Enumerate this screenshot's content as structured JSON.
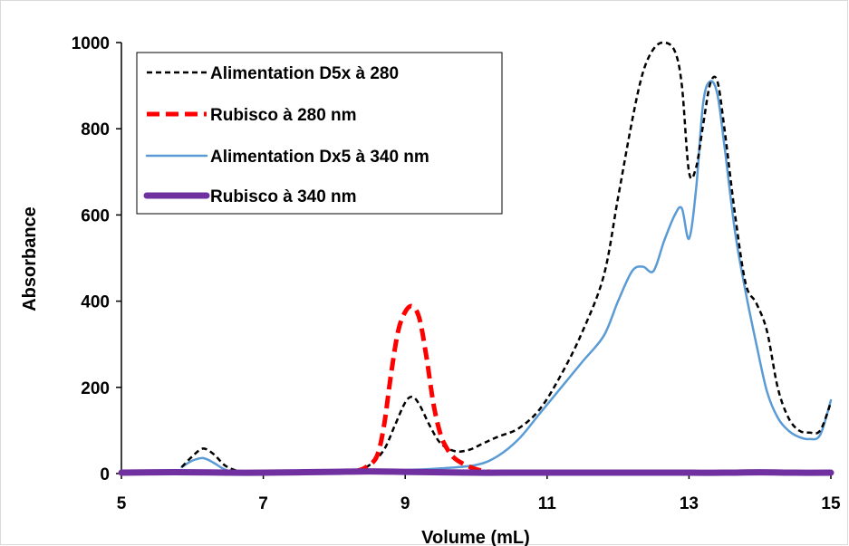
{
  "chart_data": {
    "type": "line",
    "title": "",
    "xlabel": "Volume (mL)",
    "ylabel": "Absorbance",
    "xlim": [
      5,
      15
    ],
    "ylim": [
      0,
      1000
    ],
    "xticks": [
      5,
      7,
      9,
      11,
      13,
      15
    ],
    "yticks": [
      0,
      200,
      400,
      600,
      800,
      1000
    ],
    "grid": false,
    "legend_position": "top-left",
    "series": [
      {
        "name": "Alimentation D5x à 280",
        "color": "#000000",
        "style": "dotted",
        "x": [
          5.85,
          6.0,
          6.15,
          6.3,
          6.45,
          6.6,
          6.8,
          7.0,
          7.5,
          8.0,
          8.3,
          8.5,
          8.7,
          8.85,
          9.0,
          9.1,
          9.2,
          9.35,
          9.5,
          9.7,
          9.9,
          10.1,
          10.3,
          10.6,
          10.9,
          11.2,
          11.5,
          11.8,
          12.0,
          12.2,
          12.35,
          12.5,
          12.65,
          12.8,
          12.9,
          13.0,
          13.1,
          13.2,
          13.3,
          13.4,
          13.5,
          13.65,
          13.8,
          13.95,
          14.1,
          14.25,
          14.4,
          14.55,
          14.7,
          14.85,
          15.0
        ],
        "y": [
          15,
          40,
          58,
          45,
          20,
          8,
          3,
          2,
          2,
          3,
          8,
          20,
          55,
          110,
          165,
          178,
          160,
          110,
          70,
          52,
          55,
          70,
          85,
          105,
          150,
          230,
          330,
          460,
          640,
          820,
          930,
          985,
          1000,
          980,
          900,
          700,
          710,
          810,
          905,
          910,
          800,
          600,
          440,
          395,
          330,
          200,
          130,
          100,
          95,
          100,
          165
        ]
      },
      {
        "name": "Rubisco à 280 nm",
        "color": "#ff0000",
        "style": "dashed",
        "x": [
          8.3,
          8.45,
          8.6,
          8.7,
          8.8,
          8.9,
          9.0,
          9.1,
          9.2,
          9.3,
          9.4,
          9.5,
          9.6,
          9.7,
          9.85,
          10.0,
          10.15,
          10.3
        ],
        "y": [
          5,
          15,
          40,
          110,
          230,
          330,
          375,
          388,
          360,
          270,
          160,
          90,
          55,
          35,
          20,
          10,
          5,
          2
        ]
      },
      {
        "name": "Alimentation Dx5 à 340 nm",
        "color": "#5b9bd5",
        "style": "solid",
        "x": [
          5.85,
          6.0,
          6.15,
          6.3,
          6.45,
          6.6,
          7.0,
          8.0,
          9.0,
          9.5,
          10.0,
          10.3,
          10.6,
          10.9,
          11.2,
          11.5,
          11.8,
          12.0,
          12.2,
          12.35,
          12.5,
          12.65,
          12.8,
          12.9,
          13.0,
          13.1,
          13.2,
          13.3,
          13.4,
          13.5,
          13.65,
          13.8,
          13.95,
          14.1,
          14.25,
          14.4,
          14.55,
          14.7,
          14.85,
          15.0
        ],
        "y": [
          15,
          30,
          36,
          25,
          10,
          5,
          3,
          3,
          8,
          12,
          20,
          40,
          80,
          140,
          200,
          260,
          320,
          400,
          470,
          480,
          470,
          540,
          600,
          615,
          545,
          660,
          860,
          910,
          880,
          760,
          560,
          420,
          300,
          190,
          130,
          100,
          85,
          80,
          90,
          170
        ]
      },
      {
        "name": "Rubisco à 340 nm",
        "color": "#7030a0",
        "style": "thick",
        "x": [
          5.0,
          5.5,
          6.0,
          6.5,
          7.0,
          7.5,
          8.0,
          8.5,
          9.0,
          9.5,
          10.0,
          10.5,
          11.0,
          11.5,
          12.0,
          12.5,
          13.0,
          13.5,
          14.0,
          14.5,
          15.0
        ],
        "y": [
          2,
          3,
          3,
          2,
          2,
          3,
          4,
          5,
          4,
          3,
          2,
          2,
          2,
          2,
          2,
          2,
          2,
          2,
          3,
          2,
          2
        ]
      }
    ]
  }
}
